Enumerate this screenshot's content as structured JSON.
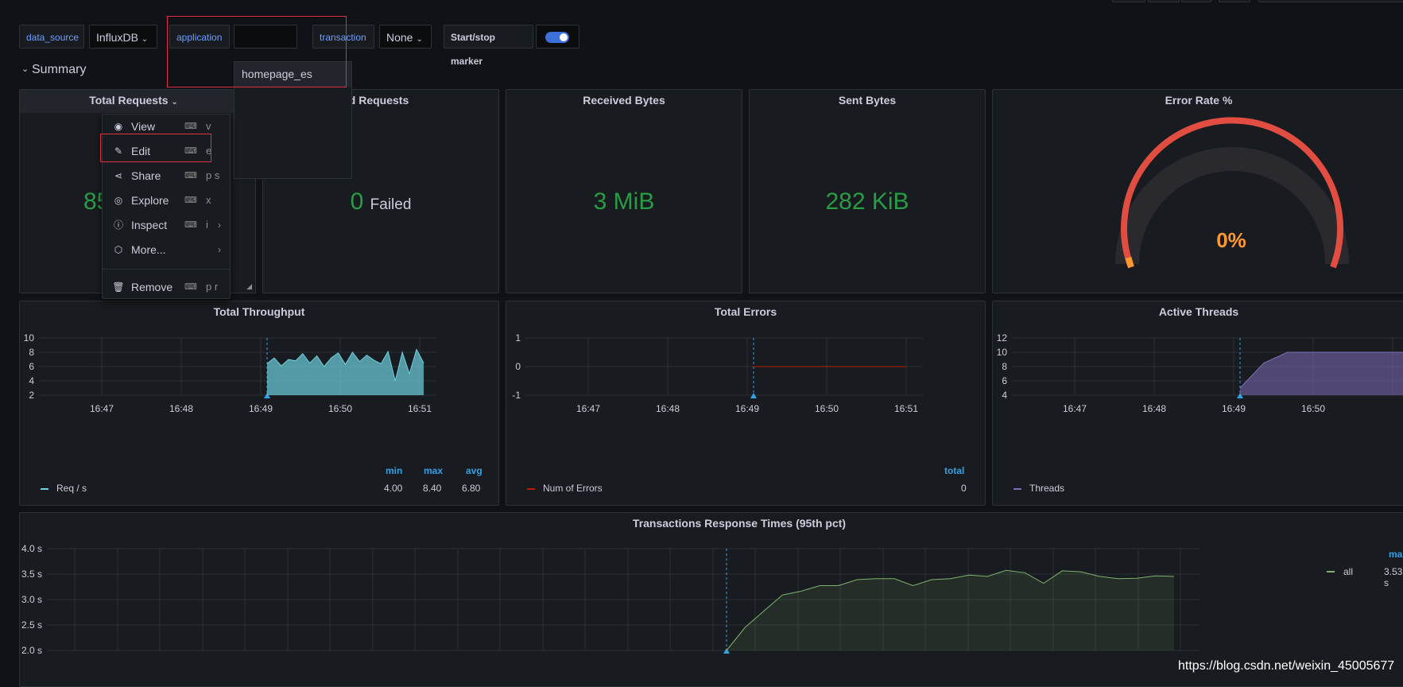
{
  "variables": {
    "data_source_label": "data_source",
    "data_source_value": "InfluxDB",
    "application_label": "application",
    "application_value": "",
    "transaction_label": "transaction",
    "transaction_value": "None",
    "marker_label": "Start/stop marker",
    "marker_enabled": true
  },
  "application_dropdown": {
    "options": [
      "homepage_es"
    ]
  },
  "row": {
    "title": "Summary"
  },
  "panels": {
    "total_requests": {
      "title": "Total Requests",
      "value": "85"
    },
    "failed_requests": {
      "title": "Failed Requests",
      "title_visible": "ed Requests",
      "value": "0",
      "suffix": "Failed"
    },
    "received_bytes": {
      "title": "Received Bytes",
      "value": "3 MiB"
    },
    "sent_bytes": {
      "title": "Sent Bytes",
      "value": "282 KiB"
    },
    "error_rate": {
      "title": "Error Rate %",
      "value": "0%"
    },
    "total_throughput": {
      "title": "Total Throughput",
      "legend_headers": [
        "min",
        "max",
        "avg"
      ],
      "legend_series": "Req / s",
      "legend_values": [
        "4.00",
        "8.40",
        "6.80"
      ]
    },
    "total_errors": {
      "title": "Total Errors",
      "legend_header": "total",
      "legend_series": "Num of Errors",
      "legend_value": "0"
    },
    "active_threads": {
      "title": "Active Threads",
      "legend_series": "Threads"
    },
    "response_times": {
      "title": "Transactions Response Times (95th pct)",
      "legend_header": "max",
      "legend_series": "all",
      "legend_value": "3.53 s"
    }
  },
  "context_menu": {
    "items": [
      {
        "label": "View",
        "shortcut": "v",
        "icon": "eye-icon",
        "submenu": false
      },
      {
        "label": "Edit",
        "shortcut": "e",
        "icon": "edit-icon",
        "submenu": false
      },
      {
        "label": "Share",
        "shortcut": "p s",
        "icon": "share-icon",
        "submenu": false
      },
      {
        "label": "Explore",
        "shortcut": "x",
        "icon": "compass-icon",
        "submenu": false
      },
      {
        "label": "Inspect",
        "shortcut": "i",
        "icon": "info-icon",
        "submenu": true
      },
      {
        "label": "More...",
        "shortcut": "",
        "icon": "cube-icon",
        "submenu": true
      },
      {
        "label": "Remove",
        "shortcut": "p r",
        "icon": "trash-icon",
        "submenu": false
      }
    ]
  },
  "watermark": "https://blog.csdn.net/weixin_45005677",
  "colors": {
    "background": "#111217",
    "panel": "#181b1f",
    "stat_green": "#299c46",
    "gauge_red": "#e24d42",
    "gauge_value": "#ff9830",
    "throughput": "#6ed0e0",
    "errors": "#bf1b00",
    "threads": "#806eb7",
    "response": "#7eb26d",
    "legend_header": "#33a2e5",
    "highlight_box": "#e02f44"
  },
  "chart_data": [
    {
      "type": "area",
      "title": "Total Throughput",
      "x_ticks": [
        "16:47",
        "16:48",
        "16:49",
        "16:50",
        "16:51"
      ],
      "y_ticks": [
        "10",
        "8",
        "6",
        "4",
        "2"
      ],
      "ylim": [
        2,
        10
      ],
      "series": [
        {
          "name": "Req / s",
          "values": [
            6.4,
            7.2,
            6.1,
            7.0,
            6.8,
            7.8,
            6.5,
            7.5,
            6.0,
            7.2,
            7.9,
            6.3,
            8.0,
            6.7,
            7.6,
            6.9,
            6.4,
            8.1,
            4.0,
            8.0,
            5.0,
            8.4,
            6.5
          ]
        }
      ]
    },
    {
      "type": "line",
      "title": "Total Errors",
      "x_ticks": [
        "16:47",
        "16:48",
        "16:49",
        "16:50",
        "16:51"
      ],
      "y_ticks": [
        "1",
        "0",
        "-1"
      ],
      "ylim": [
        -1,
        1
      ],
      "series": [
        {
          "name": "Num of Errors",
          "values": [
            0,
            0
          ]
        }
      ]
    },
    {
      "type": "area",
      "title": "Active Threads",
      "x_ticks": [
        "16:47",
        "16:48",
        "16:49",
        "16:50"
      ],
      "y_ticks": [
        "12",
        "10",
        "8",
        "6",
        "4"
      ],
      "ylim": [
        4,
        12
      ],
      "series": [
        {
          "name": "Threads",
          "values": [
            5,
            8.5,
            10,
            10,
            10,
            10,
            10,
            10
          ]
        }
      ]
    },
    {
      "type": "area",
      "title": "Transactions Response Times (95th pct)",
      "y_ticks": [
        "4.0 s",
        "3.5 s",
        "3.0 s",
        "2.5 s",
        "2.0 s"
      ],
      "ylim": [
        1.8,
        4.0
      ],
      "series": [
        {
          "name": "all",
          "values": [
            1.8,
            2.3,
            2.65,
            3.0,
            3.08,
            3.2,
            3.2,
            3.33,
            3.35,
            3.35,
            3.2,
            3.33,
            3.35,
            3.43,
            3.4,
            3.53,
            3.48,
            3.25,
            3.52,
            3.5,
            3.4,
            3.35,
            3.36,
            3.41,
            3.4
          ]
        }
      ]
    }
  ]
}
